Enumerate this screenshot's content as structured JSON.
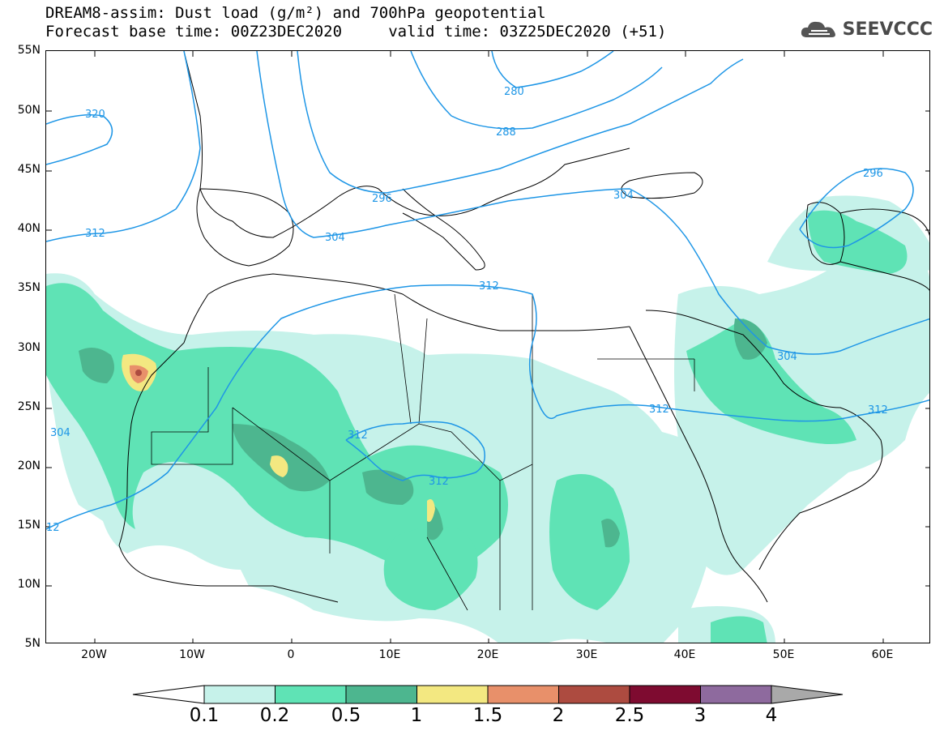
{
  "header": {
    "title_line1": "DREAM8-assim: Dust load (g/m²) and 700hPa geopotential",
    "title_line2": "Forecast base time: 00Z23DEC2020     valid time: 03Z25DEC2020 (+51)",
    "logo_text": "SEEVCCC",
    "logo_icon": "cloud-icon"
  },
  "map": {
    "lat_labels": [
      "55N",
      "50N",
      "45N",
      "40N",
      "35N",
      "30N",
      "25N",
      "20N",
      "15N",
      "10N",
      "5N"
    ],
    "lon_labels": [
      "20W",
      "10W",
      "0",
      "10E",
      "20E",
      "30E",
      "40E",
      "50E",
      "60E"
    ],
    "contour_color": "#1e96e6",
    "contour_labels": [
      "320",
      "312",
      "304",
      "296",
      "288",
      "280",
      "304",
      "312",
      "312",
      "312",
      "304",
      "312",
      "296",
      "312",
      "304",
      "12"
    ],
    "dust_colors": {
      "c1": "#c6f2ea",
      "c2": "#5fe3b5",
      "c3": "#4db68f",
      "c4": "#f3e881",
      "c5": "#e8906a",
      "c6": "#ad4b40"
    }
  },
  "colorbar": {
    "labels": [
      "0.1",
      "0.2",
      "0.5",
      "1",
      "1.5",
      "2",
      "2.5",
      "3",
      "4"
    ],
    "colors": [
      "#c6f2ea",
      "#5fe3b5",
      "#4db68f",
      "#f3e881",
      "#e8906a",
      "#ad4b40",
      "#7e0b30",
      "#8e6a9e"
    ],
    "under_color": "#ffffff",
    "over_color": "#a9a9a9"
  }
}
